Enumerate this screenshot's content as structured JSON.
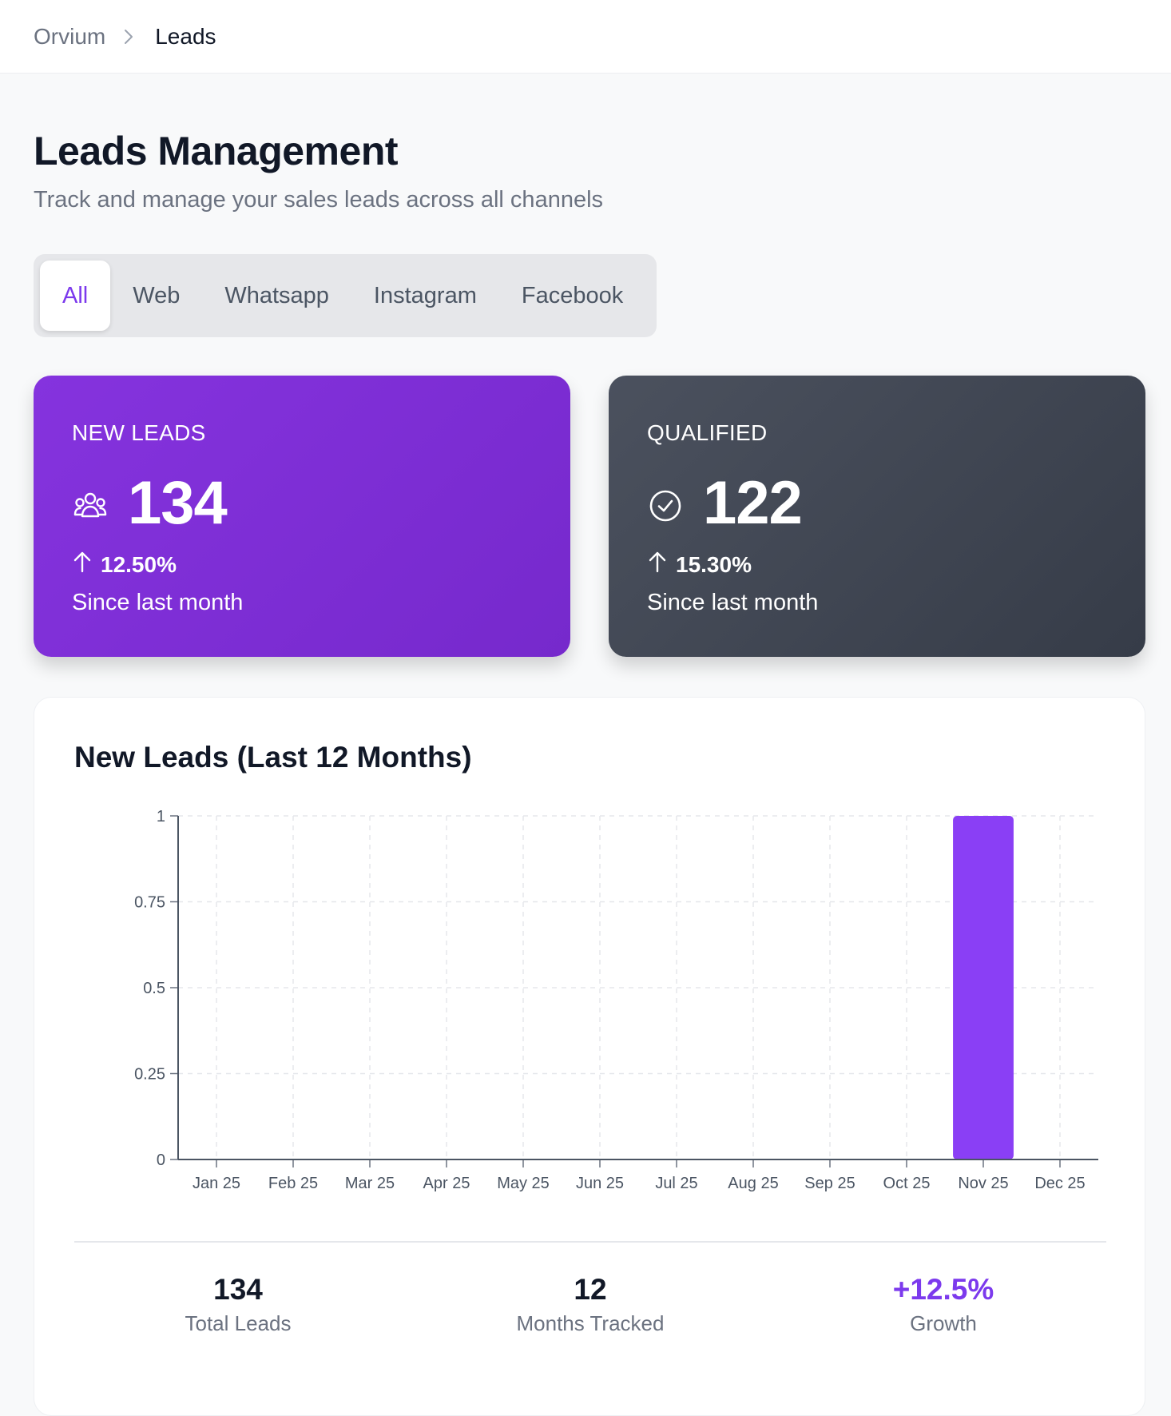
{
  "breadcrumb": {
    "root": "Orvium",
    "current": "Leads"
  },
  "page": {
    "title": "Leads Management",
    "subtitle": "Track and manage your sales leads across all channels"
  },
  "tabs": [
    {
      "label": "All",
      "active": true
    },
    {
      "label": "Web",
      "active": false
    },
    {
      "label": "Whatsapp",
      "active": false
    },
    {
      "label": "Instagram",
      "active": false
    },
    {
      "label": "Facebook",
      "active": false
    }
  ],
  "stats": {
    "new_leads": {
      "label": "NEW LEADS",
      "value": "134",
      "delta": "12.50%",
      "since": "Since last month",
      "icon": "users-icon"
    },
    "qualified": {
      "label": "QUALIFIED",
      "value": "122",
      "delta": "15.30%",
      "since": "Since last month",
      "icon": "check-circle-icon"
    }
  },
  "colors": {
    "accent": "#7c3aed",
    "bar": "#8a3ff5",
    "card_purple": "#7f2fd6",
    "card_dark": "#404653"
  },
  "chart_data": {
    "type": "bar",
    "title": "New Leads (Last 12 Months)",
    "categories": [
      "Jan 25",
      "Feb 25",
      "Mar 25",
      "Apr 25",
      "May 25",
      "Jun 25",
      "Jul 25",
      "Aug 25",
      "Sep 25",
      "Oct 25",
      "Nov 25",
      "Dec 25"
    ],
    "values": [
      0,
      0,
      0,
      0,
      0,
      0,
      0,
      0,
      0,
      0,
      1,
      0
    ],
    "yticks": [
      "0",
      "0.25",
      "0.5",
      "0.75",
      "1"
    ],
    "ylim": [
      0,
      1
    ],
    "xlabel": "",
    "ylabel": "",
    "grid": true
  },
  "summary": {
    "total_leads": {
      "value": "134",
      "label": "Total Leads"
    },
    "months_tracked": {
      "value": "12",
      "label": "Months Tracked"
    },
    "growth": {
      "value": "+12.5%",
      "label": "Growth"
    }
  }
}
